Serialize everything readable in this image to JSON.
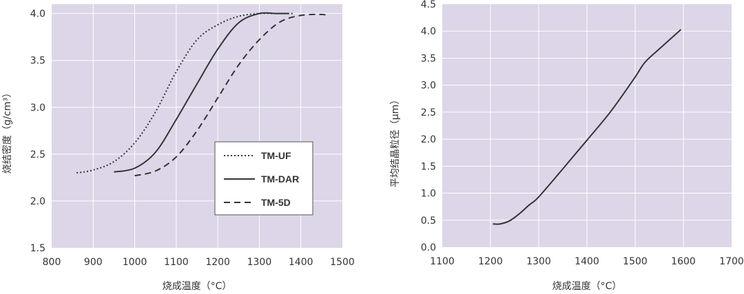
{
  "colors": {
    "plot_background": "#dcd6e8",
    "grid": "#ffffff",
    "line": "#333333",
    "legend_background": "#ffffff"
  },
  "chart_data": [
    {
      "type": "line",
      "xlabel": "烧成温度（°C）",
      "ylabel": "烧结密度（g/cm³）",
      "xlim": [
        800,
        1500
      ],
      "ylim": [
        1.5,
        4.1
      ],
      "xticks": [
        800,
        900,
        1000,
        1100,
        1200,
        1300,
        1400,
        1500
      ],
      "yticks": [
        1.5,
        2.0,
        2.5,
        3.0,
        3.5,
        4.0
      ],
      "xtick_labels": [
        "800",
        "900",
        "1000",
        "1100",
        "1200",
        "1300",
        "1400",
        "1500"
      ],
      "ytick_labels": [
        "1.5",
        "2.0",
        "2.5",
        "3.0",
        "3.5",
        "4.0"
      ],
      "grid": true,
      "legend_position": "center-right",
      "series": [
        {
          "name": "TM-UF",
          "style": "dotted",
          "x": [
            860,
            900,
            950,
            1000,
            1050,
            1100,
            1150,
            1200,
            1250,
            1300,
            1350,
            1380
          ],
          "y": [
            2.3,
            2.33,
            2.42,
            2.62,
            2.95,
            3.38,
            3.72,
            3.88,
            3.97,
            4.0,
            4.0,
            4.0
          ]
        },
        {
          "name": "TM-DAR",
          "style": "solid",
          "x": [
            950,
            1000,
            1050,
            1100,
            1150,
            1200,
            1250,
            1300,
            1340,
            1370
          ],
          "y": [
            2.31,
            2.35,
            2.52,
            2.87,
            3.25,
            3.62,
            3.9,
            4.0,
            4.0,
            4.0
          ]
        },
        {
          "name": "TM-5D",
          "style": "dashed",
          "x": [
            1000,
            1050,
            1100,
            1150,
            1200,
            1250,
            1300,
            1350,
            1400,
            1450,
            1460
          ],
          "y": [
            2.27,
            2.32,
            2.47,
            2.75,
            3.1,
            3.45,
            3.72,
            3.91,
            3.98,
            3.99,
            3.98
          ]
        }
      ]
    },
    {
      "type": "line",
      "xlabel": "烧成温度（°C）",
      "ylabel": "平均结晶粒径（μm）",
      "xlim": [
        1100,
        1700
      ],
      "ylim": [
        0.0,
        4.5
      ],
      "xticks": [
        1100,
        1200,
        1300,
        1400,
        1500,
        1600,
        1700
      ],
      "yticks": [
        0.0,
        0.5,
        1.0,
        1.5,
        2.0,
        2.5,
        3.0,
        3.5,
        4.0,
        4.5
      ],
      "xtick_labels": [
        "1100",
        "1200",
        "1300",
        "1400",
        "1500",
        "1600",
        "1700"
      ],
      "ytick_labels": [
        "0.0",
        "0.5",
        "1.0",
        "1.5",
        "2.0",
        "2.5",
        "3.0",
        "3.5",
        "4.0",
        "4.5"
      ],
      "grid": true,
      "series": [
        {
          "style": "solid",
          "x": [
            1205,
            1220,
            1240,
            1260,
            1280,
            1300,
            1350,
            1400,
            1450,
            1500,
            1520,
            1550,
            1595
          ],
          "y": [
            0.43,
            0.43,
            0.49,
            0.62,
            0.78,
            0.93,
            1.45,
            1.98,
            2.52,
            3.15,
            3.42,
            3.67,
            4.03
          ]
        }
      ]
    }
  ]
}
